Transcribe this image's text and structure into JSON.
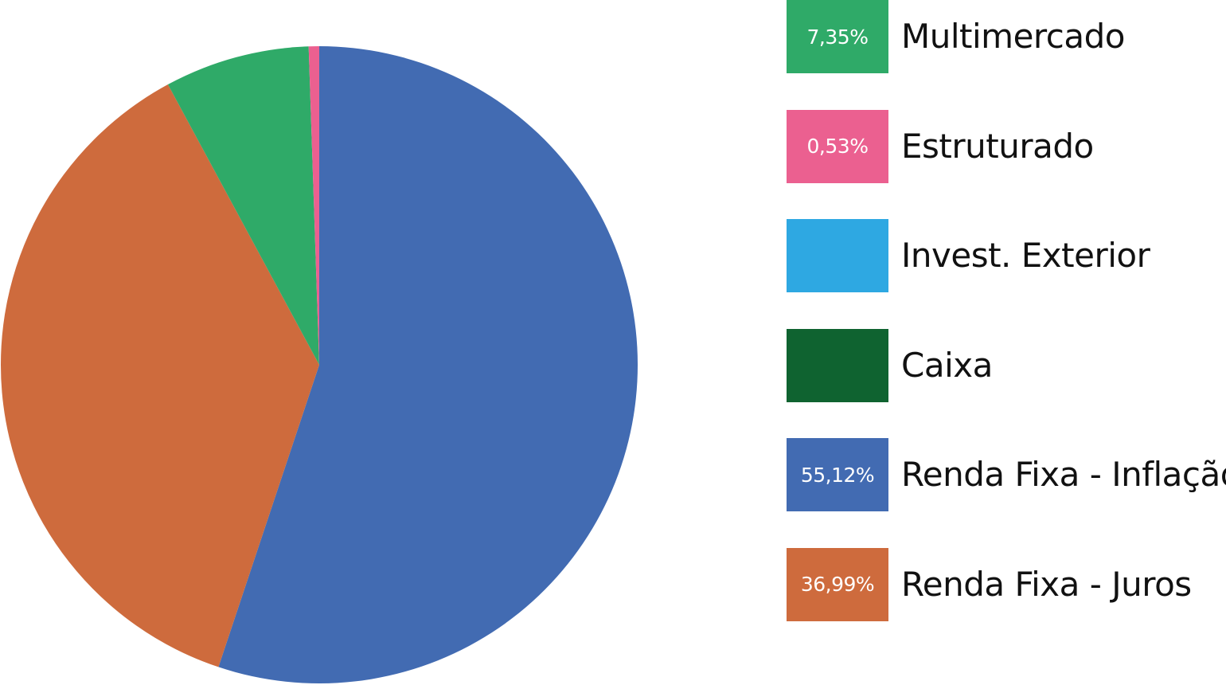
{
  "chart_data": {
    "type": "pie",
    "slices": [
      {
        "label": "Multimercado",
        "value": 7.35,
        "value_label": "7,35%",
        "color": "#2FAA68"
      },
      {
        "label": "Estruturado",
        "value": 0.53,
        "value_label": "0,53%",
        "color": "#EB6090"
      },
      {
        "label": "Invest. Exterior",
        "value": 0,
        "value_label": "",
        "color": "#2EA8E2"
      },
      {
        "label": "Caixa",
        "value": 0,
        "value_label": "",
        "color": "#0F6330"
      },
      {
        "label": "Renda Fixa - Inflação",
        "value": 55.12,
        "value_label": "55,12%",
        "color": "#426BB2"
      },
      {
        "label": "Renda Fixa - Juros",
        "value": 36.99,
        "value_label": "36,99%",
        "color": "#CE6B3D"
      }
    ],
    "legend_placement": "right"
  }
}
